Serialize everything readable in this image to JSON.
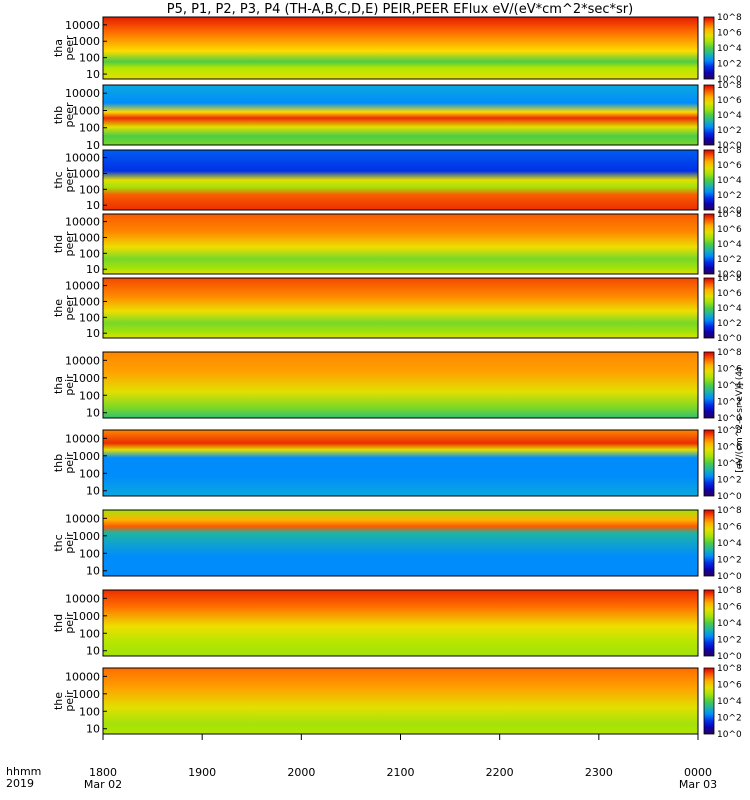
{
  "title": "P5, P1, P2, P3, P4 (TH-A,B,C,D,E) PEIR,PEER EFlux eV/(eV*cm^2*sec*sr)",
  "colorbar_units": "[eV/(cm^2-s-sr-eV)] (4)",
  "time_axis": {
    "row_label_1": "hhmm",
    "row_label_2": "2019",
    "ticks": [
      "1800",
      "1900",
      "2000",
      "2100",
      "2200",
      "2300",
      "0000"
    ],
    "dates": [
      "Mar 02",
      "Mar 03"
    ]
  },
  "energy_ticks": [
    "10",
    "100",
    "1000",
    "10000"
  ],
  "colorbar_ticks": [
    "10^0",
    "10^2",
    "10^4",
    "10^6",
    "10^8"
  ],
  "chart_data": [
    {
      "type": "heatmap",
      "panel": "tha peer",
      "probe": "tha",
      "species": "peer",
      "ylabel": [
        "tha",
        "peer"
      ],
      "yscale": "log",
      "ylim": [
        5,
        30000
      ],
      "xlim": [
        "1800",
        "0000"
      ],
      "zrange": [
        1,
        100000000.0
      ]
    },
    {
      "type": "heatmap",
      "panel": "thb peer",
      "probe": "thb",
      "species": "peer",
      "ylabel": [
        "thb",
        "peer"
      ],
      "yscale": "log",
      "ylim": [
        10,
        30000
      ],
      "xlim": [
        "1800",
        "0000"
      ],
      "zrange": [
        1,
        100000000.0
      ]
    },
    {
      "type": "heatmap",
      "panel": "thc peer",
      "probe": "thc",
      "species": "peer",
      "ylabel": [
        "thc",
        "peer"
      ],
      "yscale": "log",
      "ylim": [
        5,
        30000
      ],
      "xlim": [
        "1800",
        "0000"
      ],
      "zrange": [
        1,
        100000000.0
      ]
    },
    {
      "type": "heatmap",
      "panel": "thd peer",
      "probe": "thd",
      "species": "peer",
      "ylabel": [
        "thd",
        "peer"
      ],
      "yscale": "log",
      "ylim": [
        5,
        30000
      ],
      "xlim": [
        "1800",
        "0000"
      ],
      "zrange": [
        1,
        100000000.0
      ]
    },
    {
      "type": "heatmap",
      "panel": "the peer",
      "probe": "the",
      "species": "peer",
      "ylabel": [
        "the",
        "peer"
      ],
      "yscale": "log",
      "ylim": [
        5,
        30000
      ],
      "xlim": [
        "1800",
        "0000"
      ],
      "zrange": [
        1,
        100000000.0
      ]
    },
    {
      "type": "heatmap",
      "panel": "tha peir",
      "probe": "tha",
      "species": "peir",
      "ylabel": [
        "tha",
        "peir"
      ],
      "yscale": "log",
      "ylim": [
        5,
        30000
      ],
      "xlim": [
        "1800",
        "0000"
      ],
      "zrange": [
        1,
        100000000.0
      ]
    },
    {
      "type": "heatmap",
      "panel": "thb peir",
      "probe": "thb",
      "species": "peir",
      "ylabel": [
        "thb",
        "peir"
      ],
      "yscale": "log",
      "ylim": [
        5,
        30000
      ],
      "xlim": [
        "1800",
        "0000"
      ],
      "zrange": [
        1,
        100000000.0
      ]
    },
    {
      "type": "heatmap",
      "panel": "thc peir",
      "probe": "thc",
      "species": "peir",
      "ylabel": [
        "thc",
        "peir"
      ],
      "yscale": "log",
      "ylim": [
        5,
        30000
      ],
      "xlim": [
        "1800",
        "0000"
      ],
      "zrange": [
        1,
        100000000.0
      ]
    },
    {
      "type": "heatmap",
      "panel": "thd peir",
      "probe": "thd",
      "species": "peir",
      "ylabel": [
        "thd",
        "peir"
      ],
      "yscale": "log",
      "ylim": [
        5,
        30000
      ],
      "xlim": [
        "1800",
        "0000"
      ],
      "zrange": [
        1,
        100000000.0
      ]
    },
    {
      "type": "heatmap",
      "panel": "the peir",
      "probe": "the",
      "species": "peir",
      "ylabel": [
        "the",
        "peir"
      ],
      "yscale": "log",
      "ylim": [
        5,
        30000
      ],
      "xlim": [
        "1800",
        "0000"
      ],
      "zrange": [
        1,
        100000000.0
      ]
    }
  ]
}
